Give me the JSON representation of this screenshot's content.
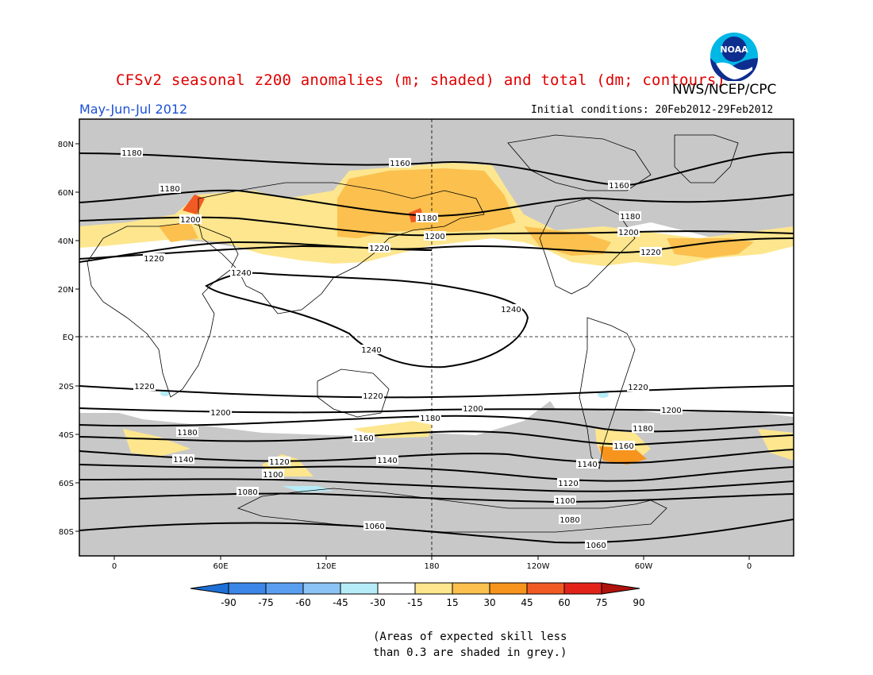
{
  "title": "CFSv2 seasonal z200 anomalies (m; shaded) and total (dm; contours)",
  "agency": "NWS/NCEP/CPC",
  "logo_text": "NOAA",
  "period": "May-Jun-Jul 2012",
  "initial_conditions": "Initial conditions: 20Feb2012-29Feb2012",
  "lat_labels": [
    "80N",
    "60N",
    "40N",
    "20N",
    "EQ",
    "20S",
    "40S",
    "60S",
    "80S"
  ],
  "lon_labels": [
    "0",
    "60E",
    "120E",
    "180",
    "120W",
    "60W",
    "0"
  ],
  "colorbar": {
    "ticks": [
      "-90",
      "-75",
      "-60",
      "-45",
      "-30",
      "-15",
      "15",
      "30",
      "45",
      "60",
      "75",
      "90"
    ],
    "colors": [
      "#1e6fd6",
      "#3b86e6",
      "#5a9ef0",
      "#8cc3f5",
      "#b6ecf7",
      "#ffffff",
      "#fde68e",
      "#fbc04e",
      "#f7941d",
      "#f15a22",
      "#e2231a",
      "#b0120d"
    ]
  },
  "skill_note": [
    "(Areas of expected skill less",
    "than 0.3 are shaded in grey.)"
  ],
  "contour_labels": {
    "c1180_top": "1180",
    "c1160_top": "1160",
    "c1160_r": "1160",
    "c1180_l": "1180",
    "c1180_mid": "1180",
    "c1180_r": "1180",
    "c1200_l": "1200",
    "c1200_mid": "1200",
    "c1200_r": "1200",
    "c1220_l": "1220",
    "c1220_mid": "1220",
    "c1220_r": "1220",
    "c1240_l": "1240",
    "c1240_mid": "1240",
    "c1240_s": "1240",
    "s1220_l": "1220",
    "s1220_mid": "1220",
    "s1220_r": "1220",
    "s1200_l": "1200",
    "s1200_mid": "1200",
    "s1200_r": "1200",
    "s1180_l": "1180",
    "s1180_mid": "1180",
    "s1180_r": "1180",
    "s1160_mid": "1160",
    "s1160_r": "1160",
    "s1140_l": "1140",
    "s1140_mid": "1140",
    "s1140_r": "1140",
    "s1120_l": "1120",
    "s1120_r": "1120",
    "s1100_l": "1100",
    "s1100_r": "1100",
    "s1080_l": "1080",
    "s1080_r": "1080",
    "s1060_mid": "1060",
    "s1060_r": "1060"
  }
}
